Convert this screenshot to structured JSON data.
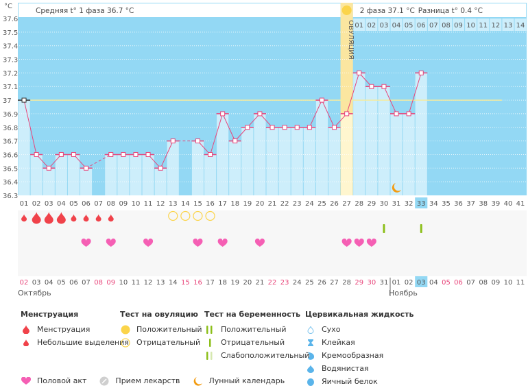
{
  "chart_data": {
    "type": "bar",
    "title": "",
    "ylabel": "°C",
    "ylim": [
      36.3,
      37.6
    ],
    "yticks": [
      "37.6",
      "37.5",
      "37.4",
      "37.3",
      "37.2",
      "37.1",
      "37",
      "36.9",
      "36.8",
      "36.7",
      "36.6",
      "36.5",
      "36.4",
      "36.3"
    ],
    "coverline": 37.0,
    "header": {
      "phase1": "Средняя t° 1 фаза 36.7 °C",
      "phase2": "2 фаза 37.1 °C",
      "difference": "Разница t° 0.4 °C"
    },
    "ovulation_label": "ОВУЛЯЦИЯ",
    "ovulation_day": 27,
    "current_day": 33,
    "cycle_days": [
      "01",
      "02",
      "03",
      "04",
      "05",
      "06",
      "07",
      "08",
      "09",
      "10",
      "11",
      "12",
      "13",
      "14",
      "15",
      "16",
      "17",
      "18",
      "19",
      "20",
      "21",
      "22",
      "23",
      "24",
      "25",
      "26",
      "27",
      "28",
      "29",
      "30",
      "31",
      "32",
      "33",
      "34",
      "35",
      "36",
      "37",
      "38",
      "39",
      "40",
      "41"
    ],
    "temperatures": [
      37.0,
      36.6,
      36.5,
      36.6,
      36.6,
      36.5,
      null,
      36.6,
      36.6,
      36.6,
      36.6,
      36.5,
      36.7,
      null,
      36.7,
      36.6,
      36.9,
      36.7,
      36.8,
      36.9,
      36.8,
      36.8,
      36.8,
      36.8,
      37.0,
      36.8,
      36.9,
      37.2,
      37.1,
      37.1,
      36.9,
      36.9,
      37.2,
      null,
      null,
      null,
      null,
      null,
      null,
      null,
      null
    ],
    "post_ovulation_days": [
      "01",
      "02",
      "03",
      "04",
      "05",
      "06",
      "07",
      "08",
      "09",
      "10",
      "11",
      "12",
      "13",
      "14"
    ],
    "dates": [
      "02",
      "03",
      "04",
      "05",
      "06",
      "07",
      "08",
      "09",
      "10",
      "11",
      "12",
      "13",
      "14",
      "15",
      "16",
      "17",
      "18",
      "19",
      "20",
      "21",
      "22",
      "23",
      "24",
      "25",
      "26",
      "27",
      "28",
      "29",
      "30",
      "31",
      "01",
      "02",
      "03",
      "04",
      "05",
      "06",
      "07",
      "08",
      "09",
      "10",
      "11"
    ],
    "weekend_dates_idx": [
      0,
      6,
      7,
      13,
      14,
      20,
      21,
      27,
      28,
      34,
      35
    ],
    "months": [
      {
        "label": "Октябрь",
        "start_idx": 0
      },
      {
        "label": "Ноябрь",
        "start_idx": 30
      }
    ],
    "menstruation": {
      "1": "small",
      "2": "large",
      "3": "large",
      "4": "large",
      "5": "small",
      "6": "small",
      "7": "small",
      "8": "small"
    },
    "ovulation_tests": {
      "13": "negative",
      "14": "negative",
      "15": "negative",
      "16": "negative"
    },
    "pregnancy_tests": {
      "30": "negative",
      "33": "negative"
    },
    "intercourse": [
      6,
      8,
      11,
      15,
      17,
      20,
      27,
      28,
      29
    ],
    "moon": [
      31
    ]
  },
  "legend": {
    "menstruation": {
      "title": "Менструация",
      "items": [
        "Менструация",
        "Небольшие выделения"
      ]
    },
    "ovulation_test": {
      "title": "Тест на овуляцию",
      "items": [
        "Положительный",
        "Отрицательный"
      ]
    },
    "pregnancy_test": {
      "title": "Тест на беременность",
      "items": [
        "Положительный",
        "Отрицательный",
        "Слабоположительный"
      ]
    },
    "cervical": {
      "title": "Цервикальная жидкость",
      "items": [
        "Сухо",
        "Клейкая",
        "Кремообразная",
        "Водянистая",
        "Яичный белок"
      ]
    },
    "other": [
      "Половой акт",
      "Прием лекарств",
      "Лунный календарь"
    ]
  },
  "colors": {
    "bg_blue": "#93d8f4",
    "bar": "#cdeefb",
    "line": "#e8457a",
    "ovulation": "#fbe6a0",
    "current": "#93d8f4",
    "drop": "#f0424a",
    "heart": "#f55fb4",
    "preg": "#8cbf1a",
    "ovu_pos": "#fbd44a"
  }
}
